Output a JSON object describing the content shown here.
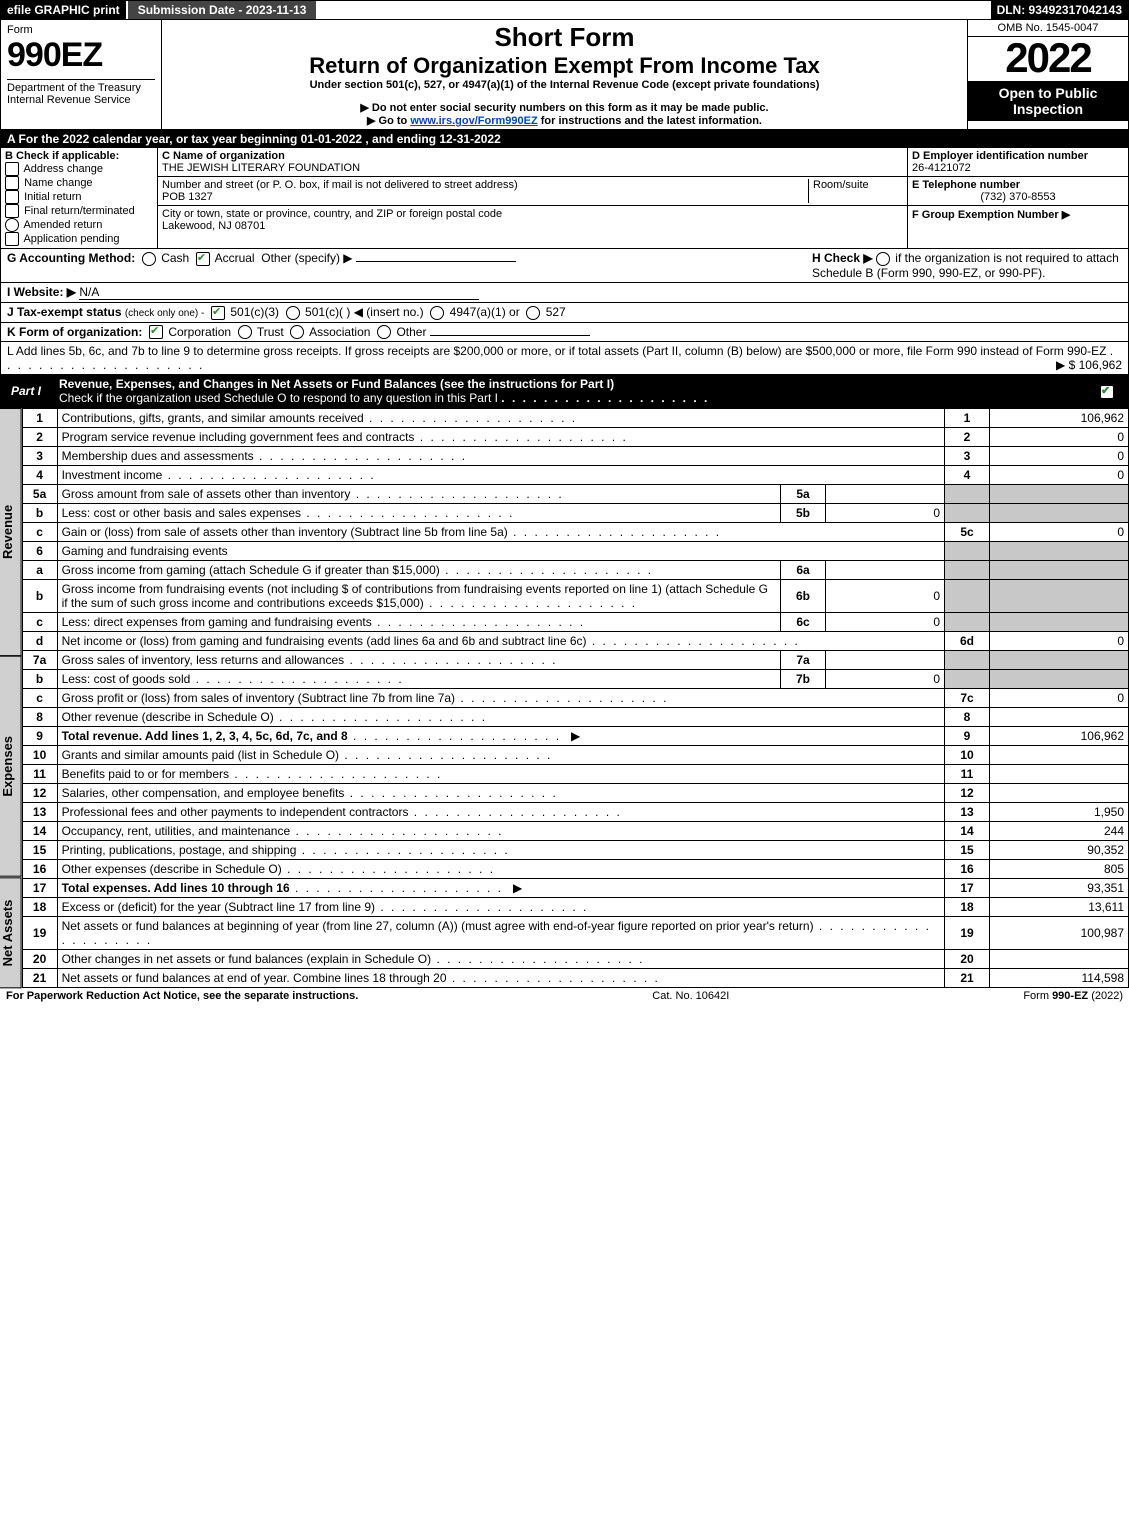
{
  "header": {
    "efile": "efile GRAPHIC print",
    "submission": "Submission Date - 2023-11-13",
    "dln": "DLN: 93492317042143"
  },
  "title_block": {
    "form_word": "Form",
    "form_num": "990EZ",
    "dept": "Department of the Treasury\nInternal Revenue Service",
    "short_form": "Short Form",
    "return_title": "Return of Organization Exempt From Income Tax",
    "sub1": "Under section 501(c), 527, or 4947(a)(1) of the Internal Revenue Code (except private foundations)",
    "sub2": "▶ Do not enter social security numbers on this form as it may be made public.",
    "sub3_pre": "▶ Go to ",
    "sub3_link": "www.irs.gov/Form990EZ",
    "sub3_post": " for instructions and the latest information.",
    "omb": "OMB No. 1545-0047",
    "year": "2022",
    "open": "Open to Public Inspection"
  },
  "A": "A  For the 2022 calendar year, or tax year beginning 01-01-2022 , and ending 12-31-2022",
  "B": {
    "label": "B  Check if applicable:",
    "opts": [
      "Address change",
      "Name change",
      "Initial return",
      "Final return/terminated",
      "Amended return",
      "Application pending"
    ]
  },
  "C": {
    "label": "C Name of organization",
    "name": "THE JEWISH LITERARY FOUNDATION",
    "addr_label": "Number and street (or P. O. box, if mail is not delivered to street address)",
    "room_label": "Room/suite",
    "addr": "POB 1327",
    "city_label": "City or town, state or province, country, and ZIP or foreign postal code",
    "city": "Lakewood, NJ  08701"
  },
  "D": {
    "label": "D Employer identification number",
    "val": "26-4121072"
  },
  "E": {
    "label": "E Telephone number",
    "val": "(732) 370-8553"
  },
  "F": {
    "label": "F Group Exemption Number   ▶"
  },
  "G": {
    "label": "G Accounting Method:",
    "cash": "Cash",
    "accrual": "Accrual",
    "other": "Other (specify) ▶"
  },
  "H": {
    "label": "H  Check ▶",
    "text": "if the organization is not required to attach Schedule B (Form 990, 990-EZ, or 990-PF)."
  },
  "I": {
    "label": "I Website: ▶",
    "val": "N/A"
  },
  "J": {
    "label": "J Tax-exempt status",
    "sub": "(check only one) -",
    "o1": "501(c)(3)",
    "o2": "501(c)(  ) ◀ (insert no.)",
    "o3": "4947(a)(1) or",
    "o4": "527"
  },
  "K": {
    "label": "K Form of organization:",
    "opts": [
      "Corporation",
      "Trust",
      "Association",
      "Other"
    ]
  },
  "L": {
    "text": "L Add lines 5b, 6c, and 7b to line 9 to determine gross receipts. If gross receipts are $200,000 or more, or if total assets (Part II, column (B) below) are $500,000 or more, file Form 990 instead of Form 990-EZ",
    "amt": "▶ $ 106,962"
  },
  "part1": {
    "title": "Revenue, Expenses, and Changes in Net Assets or Fund Balances",
    "sub": "(see the instructions for Part I)",
    "check_note": "Check if the organization used Schedule O to respond to any question in this Part I"
  },
  "side_labels": {
    "rev": "Revenue",
    "exp": "Expenses",
    "na": "Net Assets"
  },
  "lines": {
    "l1": {
      "n": "1",
      "t": "Contributions, gifts, grants, and similar amounts received",
      "r": "1",
      "v": "106,962"
    },
    "l2": {
      "n": "2",
      "t": "Program service revenue including government fees and contracts",
      "r": "2",
      "v": "0"
    },
    "l3": {
      "n": "3",
      "t": "Membership dues and assessments",
      "r": "3",
      "v": "0"
    },
    "l4": {
      "n": "4",
      "t": "Investment income",
      "r": "4",
      "v": "0"
    },
    "l5a": {
      "n": "5a",
      "t": "Gross amount from sale of assets other than inventory",
      "ref": "5a",
      "val": ""
    },
    "l5b": {
      "n": "b",
      "t": "Less: cost or other basis and sales expenses",
      "ref": "5b",
      "val": "0"
    },
    "l5c": {
      "n": "c",
      "t": "Gain or (loss) from sale of assets other than inventory (Subtract line 5b from line 5a)",
      "r": "5c",
      "v": "0"
    },
    "l6": {
      "n": "6",
      "t": "Gaming and fundraising events"
    },
    "l6a": {
      "n": "a",
      "t": "Gross income from gaming (attach Schedule G if greater than $15,000)",
      "ref": "6a",
      "val": ""
    },
    "l6b": {
      "n": "b",
      "t": "Gross income from fundraising events (not including $                    of contributions from fundraising events reported on line 1) (attach Schedule G if the sum of such gross income and contributions exceeds $15,000)",
      "ref": "6b",
      "val": "0"
    },
    "l6c": {
      "n": "c",
      "t": "Less: direct expenses from gaming and fundraising events",
      "ref": "6c",
      "val": "0"
    },
    "l6d": {
      "n": "d",
      "t": "Net income or (loss) from gaming and fundraising events (add lines 6a and 6b and subtract line 6c)",
      "r": "6d",
      "v": "0"
    },
    "l7a": {
      "n": "7a",
      "t": "Gross sales of inventory, less returns and allowances",
      "ref": "7a",
      "val": ""
    },
    "l7b": {
      "n": "b",
      "t": "Less: cost of goods sold",
      "ref": "7b",
      "val": "0"
    },
    "l7c": {
      "n": "c",
      "t": "Gross profit or (loss) from sales of inventory (Subtract line 7b from line 7a)",
      "r": "7c",
      "v": "0"
    },
    "l8": {
      "n": "8",
      "t": "Other revenue (describe in Schedule O)",
      "r": "8",
      "v": ""
    },
    "l9": {
      "n": "9",
      "t": "Total revenue. Add lines 1, 2, 3, 4, 5c, 6d, 7c, and 8",
      "r": "9",
      "v": "106,962",
      "bold": true,
      "arrow": true
    },
    "l10": {
      "n": "10",
      "t": "Grants and similar amounts paid (list in Schedule O)",
      "r": "10",
      "v": ""
    },
    "l11": {
      "n": "11",
      "t": "Benefits paid to or for members",
      "r": "11",
      "v": ""
    },
    "l12": {
      "n": "12",
      "t": "Salaries, other compensation, and employee benefits",
      "r": "12",
      "v": ""
    },
    "l13": {
      "n": "13",
      "t": "Professional fees and other payments to independent contractors",
      "r": "13",
      "v": "1,950"
    },
    "l14": {
      "n": "14",
      "t": "Occupancy, rent, utilities, and maintenance",
      "r": "14",
      "v": "244"
    },
    "l15": {
      "n": "15",
      "t": "Printing, publications, postage, and shipping",
      "r": "15",
      "v": "90,352"
    },
    "l16": {
      "n": "16",
      "t": "Other expenses (describe in Schedule O)",
      "r": "16",
      "v": "805"
    },
    "l17": {
      "n": "17",
      "t": "Total expenses. Add lines 10 through 16",
      "r": "17",
      "v": "93,351",
      "bold": true,
      "arrow": true
    },
    "l18": {
      "n": "18",
      "t": "Excess or (deficit) for the year (Subtract line 17 from line 9)",
      "r": "18",
      "v": "13,611"
    },
    "l19": {
      "n": "19",
      "t": "Net assets or fund balances at beginning of year (from line 27, column (A)) (must agree with end-of-year figure reported on prior year's return)",
      "r": "19",
      "v": "100,987"
    },
    "l20": {
      "n": "20",
      "t": "Other changes in net assets or fund balances (explain in Schedule O)",
      "r": "20",
      "v": ""
    },
    "l21": {
      "n": "21",
      "t": "Net assets or fund balances at end of year. Combine lines 18 through 20",
      "r": "21",
      "v": "114,598"
    }
  },
  "footer": {
    "left": "For Paperwork Reduction Act Notice, see the separate instructions.",
    "mid": "Cat. No. 10642I",
    "right": "Form 990-EZ (2022)"
  }
}
